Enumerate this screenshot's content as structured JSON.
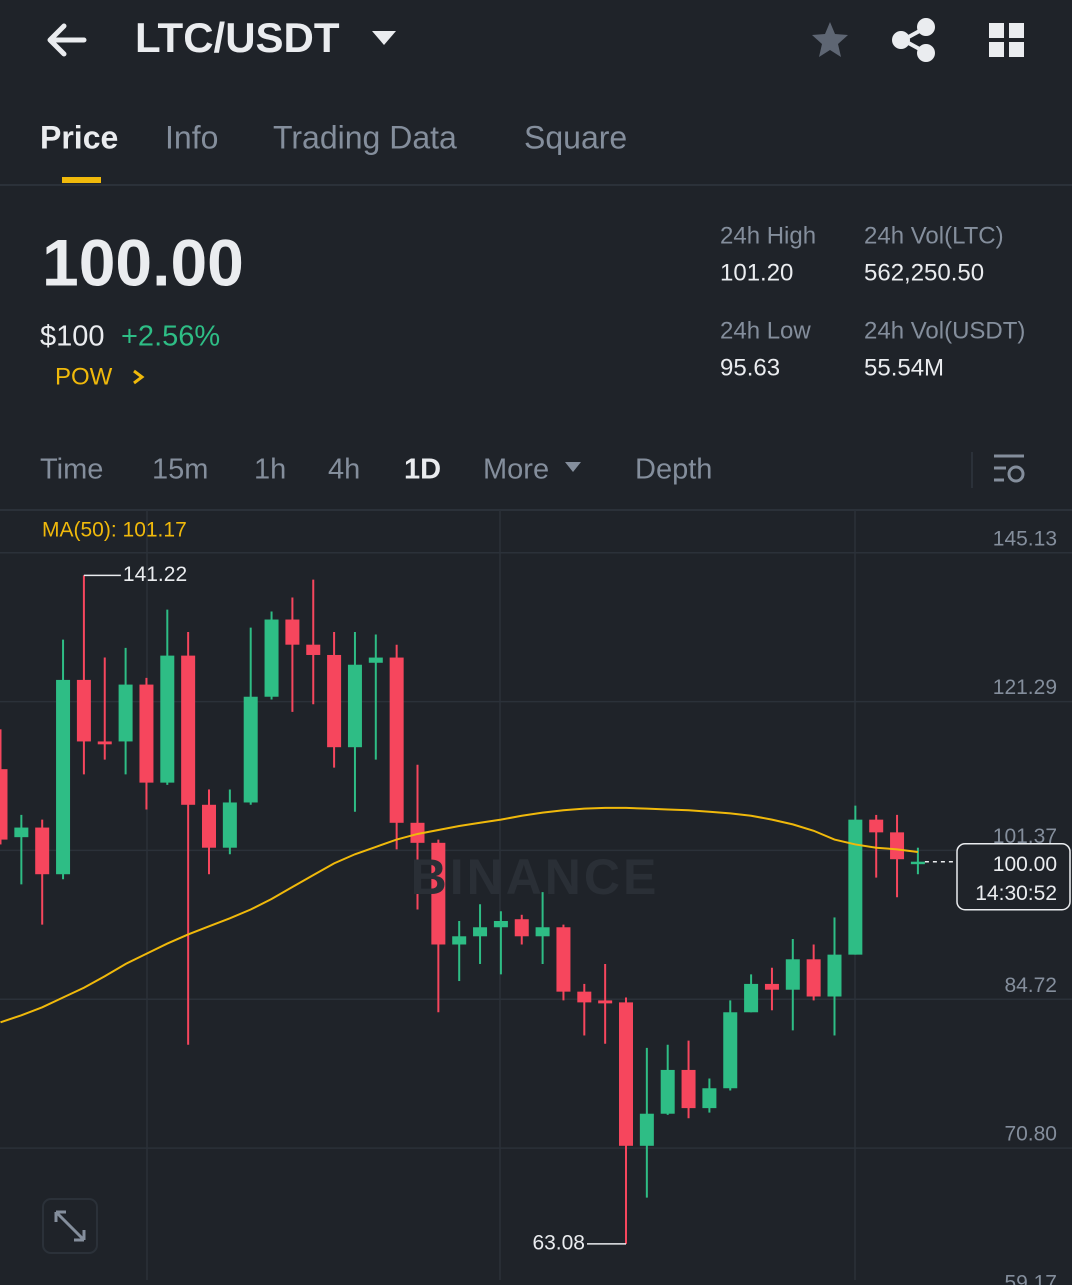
{
  "header": {
    "pair": "LTC/USDT"
  },
  "tabs": {
    "items": [
      "Price",
      "Info",
      "Trading Data",
      "Square"
    ],
    "active": 0
  },
  "price": {
    "last": "100.00",
    "fiat": "$100",
    "change": "+2.56%",
    "tag": "POW"
  },
  "stats": [
    {
      "label": "24h High",
      "value": "101.20"
    },
    {
      "label": "24h Vol(LTC)",
      "value": "562,250.50"
    },
    {
      "label": "24h Low",
      "value": "95.63"
    },
    {
      "label": "24h Vol(USDT)",
      "value": "55.54M"
    }
  ],
  "intervals": {
    "items": [
      "Time",
      "15m",
      "1h",
      "4h",
      "1D",
      "More",
      "Depth"
    ],
    "active": 4
  },
  "chart_data": {
    "type": "candlestick",
    "ma_label": "MA(50): 101.17",
    "watermark": "BINANCE",
    "log_scale": true,
    "grid": true,
    "up_color": "#2ebd85",
    "down_color": "#f6465d",
    "ma_color": "#f0b90b",
    "ylim": [
      59.17,
      152.8
    ],
    "yticks": [
      145.13,
      121.29,
      101.37,
      84.72,
      {
        "value": 70.8,
        "label": "70.80"
      },
      59.17
    ],
    "open": [
      111.8,
      103.0,
      104.2,
      98.5,
      124.5,
      115.6,
      115.6,
      123.8,
      110.0,
      128.2,
      107.1,
      101.7,
      107.4,
      122.0,
      133.9,
      129.9,
      128.3,
      114.8,
      127.1,
      127.9,
      104.8,
      102.3,
      90.5,
      91.4,
      92.4,
      93.3,
      91.4,
      92.4,
      85.5,
      84.6,
      84.4,
      71.0,
      73.8,
      77.8,
      74.3,
      76.1,
      83.4,
      86.3,
      85.7,
      88.9,
      85.0,
      89.4,
      105.2,
      103.6,
      99.7
    ],
    "high": [
      117.3,
      105.8,
      105.2,
      130.7,
      141.22,
      127.9,
      129.4,
      124.8,
      135.5,
      131.9,
      109.1,
      109.1,
      132.6,
      135.2,
      137.5,
      140.5,
      131.9,
      131.9,
      131.5,
      129.9,
      112.4,
      102.7,
      93.1,
      95.0,
      94.2,
      93.8,
      96.4,
      92.7,
      86.3,
      88.4,
      84.9,
      79.9,
      80.2,
      80.6,
      77.0,
      84.6,
      87.3,
      88.0,
      91.1,
      90.5,
      93.5,
      107.0,
      105.8,
      105.8,
      101.7
    ],
    "low": [
      102.1,
      97.3,
      92.7,
      97.9,
      111.1,
      113.1,
      111.1,
      106.5,
      109.7,
      80.2,
      98.5,
      100.9,
      107.1,
      121.6,
      119.8,
      120.9,
      112.0,
      106.2,
      113.1,
      101.5,
      94.4,
      83.4,
      86.6,
      88.4,
      87.3,
      90.5,
      88.4,
      84.6,
      81.1,
      80.3,
      63.08,
      66.7,
      73.7,
      73.4,
      73.9,
      75.9,
      83.4,
      83.6,
      81.6,
      84.6,
      81.1,
      89.4,
      98.1,
      95.8,
      98.5
    ],
    "close": [
      102.7,
      104.2,
      98.5,
      124.5,
      115.6,
      115.2,
      123.8,
      110.0,
      128.2,
      107.1,
      101.7,
      107.4,
      122.0,
      133.9,
      129.9,
      128.3,
      114.8,
      126.8,
      127.9,
      104.8,
      102.3,
      90.5,
      91.4,
      92.4,
      93.1,
      91.4,
      92.4,
      85.5,
      84.4,
      84.3,
      71.0,
      73.8,
      77.8,
      74.3,
      76.1,
      83.4,
      86.3,
      85.7,
      88.9,
      85.0,
      89.4,
      105.2,
      103.6,
      100.3,
      100.0
    ],
    "ma": [
      82.4,
      83.1,
      83.9,
      84.9,
      85.9,
      87.1,
      88.4,
      89.5,
      90.6,
      91.6,
      92.5,
      93.4,
      94.4,
      95.6,
      97.0,
      98.4,
      99.8,
      100.9,
      101.8,
      102.7,
      103.4,
      103.9,
      104.4,
      104.8,
      105.2,
      105.7,
      106.1,
      106.4,
      106.6,
      106.7,
      106.7,
      106.6,
      106.5,
      106.4,
      106.2,
      106.0,
      105.7,
      105.2,
      104.6,
      103.8,
      102.7,
      102.1,
      101.7,
      101.5,
      101.17
    ],
    "high_marker": 4,
    "low_marker": 30,
    "last_label": "100.00",
    "countdown": "14:30:52"
  }
}
